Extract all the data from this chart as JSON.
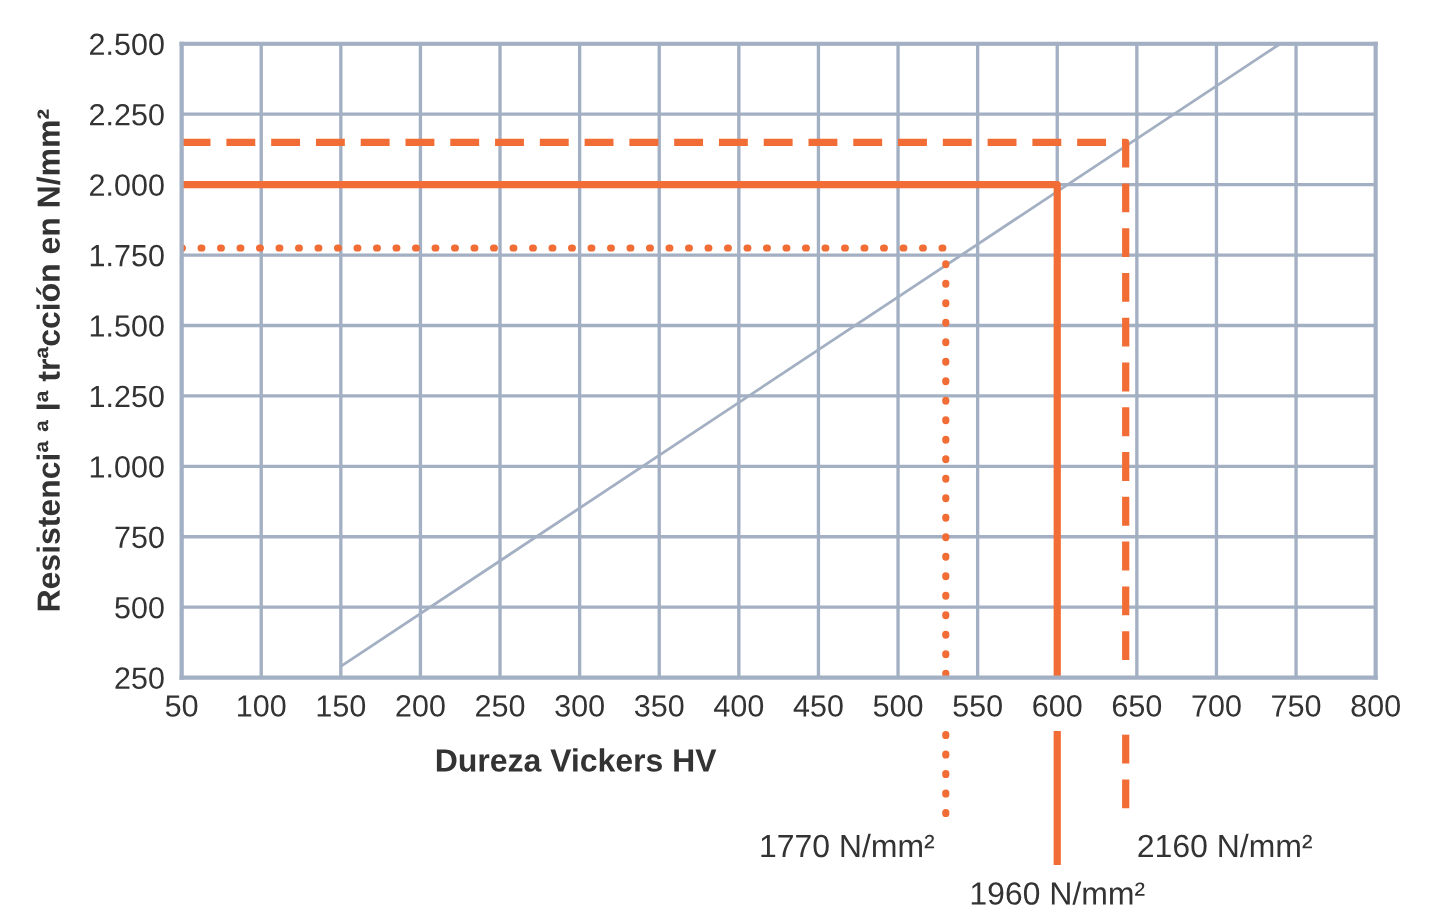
{
  "chart_data": {
    "type": "line",
    "xlabel": "Dureza Vickers HV",
    "ylabel": "Resistenciª ª lª trªcción en N/mm²",
    "xlim": [
      50,
      800
    ],
    "xticks": [
      50,
      100,
      150,
      200,
      250,
      300,
      350,
      400,
      450,
      500,
      550,
      600,
      650,
      700,
      750,
      800
    ],
    "ylim": [
      250,
      2500
    ],
    "yticks": [
      250,
      500,
      750,
      {
        "value": 1000,
        "label": "1.000"
      },
      {
        "value": 1250,
        "label": "1.250"
      },
      {
        "value": 1500,
        "label": "1.500"
      },
      {
        "value": 1750,
        "label": "1.750"
      },
      {
        "value": 2000,
        "label": "2.000"
      },
      {
        "value": 2250,
        "label": "2.250"
      },
      {
        "value": 2500,
        "label": "2.500"
      }
    ],
    "grid": true,
    "legend": false,
    "marker": "none",
    "series": [
      {
        "color": "#a3afc2",
        "x": [
          150,
          740
        ],
        "values": [
          290,
          2500
        ],
        "line_style": "solid"
      },
      {
        "color": "#f26d35",
        "x": [
          50,
          530,
          530
        ],
        "values": [
          1775,
          1775,
          250
        ],
        "line_style": "dotted"
      },
      {
        "color": "#f26d35",
        "x": [
          50,
          600,
          600
        ],
        "values": [
          2000,
          2000,
          250
        ],
        "line_style": "solid"
      },
      {
        "color": "#f26d35",
        "x": [
          50,
          643,
          643
        ],
        "values": [
          2150,
          2150,
          250
        ],
        "line_style": "dashed"
      }
    ],
    "annotations": [
      "1770 N/mm²",
      "1960 N/mm²",
      "2160 N/mm²"
    ]
  }
}
